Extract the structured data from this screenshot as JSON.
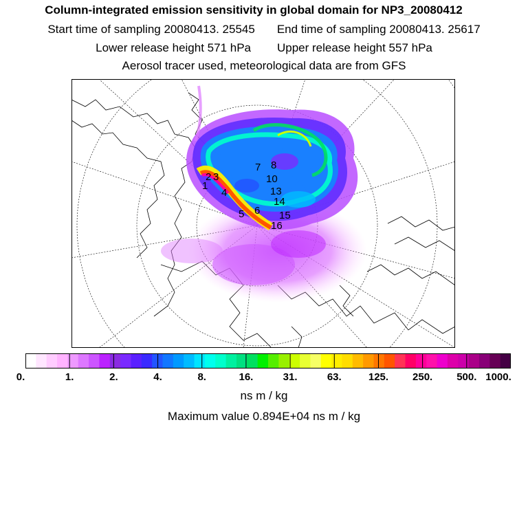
{
  "header": {
    "title": "Column-integrated emission sensitivity in global domain for NP3_20080412",
    "start_label": "Start time of sampling 20080413. 25545",
    "end_label": "End time of sampling 20080413. 25617",
    "lower_label": "Lower release height  571 hPa",
    "upper_label": "Upper release height  557 hPa",
    "tracer_note": "Aerosol tracer used, meteorological data are from GFS"
  },
  "map": {
    "markers": [
      {
        "label": "1"
      },
      {
        "label": "2"
      },
      {
        "label": "3"
      },
      {
        "label": "4"
      },
      {
        "label": "5"
      },
      {
        "label": "6"
      },
      {
        "label": "7"
      },
      {
        "label": "8"
      },
      {
        "label": "10"
      },
      {
        "label": "13"
      },
      {
        "label": "14"
      },
      {
        "label": "15"
      },
      {
        "label": "16"
      }
    ]
  },
  "colorbar": {
    "tick_labels": [
      "0.",
      "1.",
      "2.",
      "4.",
      "8.",
      "16.",
      "31.",
      "63.",
      "125.",
      "250.",
      "500.",
      "1000."
    ],
    "colors": [
      "#ffffff",
      "#ffe6ff",
      "#ffccff",
      "#ffb3ff",
      "#ee99ff",
      "#dd77ff",
      "#cc55ff",
      "#bb22ff",
      "#8a2be2",
      "#7a2aff",
      "#5a20ff",
      "#3a2aff",
      "#2255ff",
      "#1177ff",
      "#0099ff",
      "#00bbff",
      "#00e5ff",
      "#00ffee",
      "#00ffcc",
      "#00f0a0",
      "#00e080",
      "#00e060",
      "#00f000",
      "#55ee00",
      "#99f000",
      "#ccff00",
      "#e8ff33",
      "#f6ff66",
      "#ffff00",
      "#ffee00",
      "#ffdd00",
      "#ffbb00",
      "#ff9900",
      "#ff7700",
      "#ff5500",
      "#ff3355",
      "#ff0066",
      "#ff0099",
      "#ff11aa",
      "#ee00cc",
      "#dd00aa",
      "#cc00aa",
      "#aa0088",
      "#880077",
      "#660055",
      "#440044"
    ],
    "units": "ns m / kg",
    "max_value": "Maximum value  0.894E+04 ns m / kg"
  }
}
